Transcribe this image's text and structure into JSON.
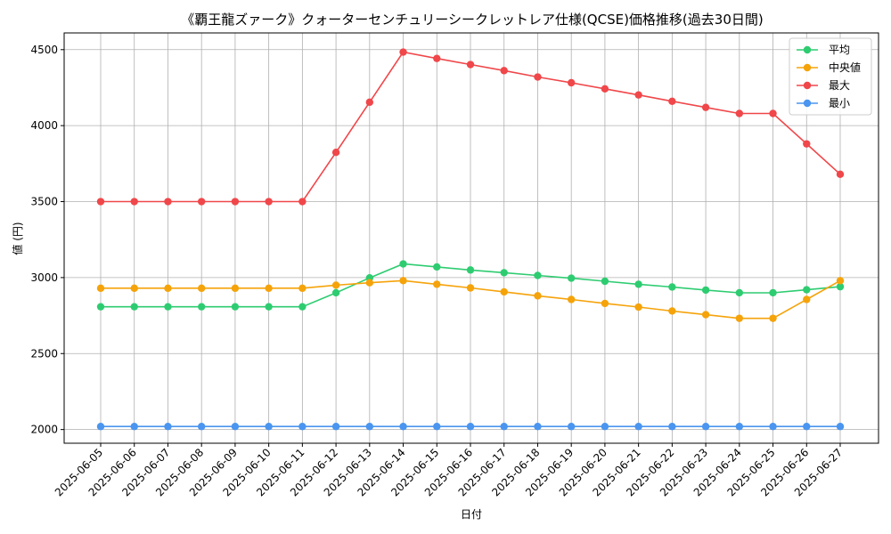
{
  "chart_data": {
    "type": "line",
    "title": "《覇王龍ズァーク》クォーターセンチュリーシークレットレア仕様(QCSE)価格推移(過去30日間)",
    "xlabel": "日付",
    "ylabel": "値 (円)",
    "categories": [
      "2025-06-05",
      "2025-06-06",
      "2025-06-07",
      "2025-06-08",
      "2025-06-09",
      "2025-06-10",
      "2025-06-11",
      "2025-06-12",
      "2025-06-13",
      "2025-06-14",
      "2025-06-15",
      "2025-06-16",
      "2025-06-17",
      "2025-06-18",
      "2025-06-19",
      "2025-06-20",
      "2025-06-21",
      "2025-06-22",
      "2025-06-23",
      "2025-06-24",
      "2025-06-25",
      "2025-06-26",
      "2025-06-27"
    ],
    "ylim": [
      1910,
      4610
    ],
    "yticks": [
      2000,
      2500,
      3000,
      3500,
      4000,
      4500
    ],
    "grid": true,
    "legend_position": "top-right",
    "series": [
      {
        "name": "平均",
        "color": "#2ecc71",
        "values": [
          2808,
          2808,
          2808,
          2808,
          2808,
          2808,
          2808,
          2900,
          2998,
          3090,
          3070,
          3050,
          3032,
          3014,
          2996,
          2976,
          2956,
          2938,
          2918,
          2900,
          2900,
          2920,
          2940
        ]
      },
      {
        "name": "中央値",
        "color": "#f5a30a",
        "values": [
          2930,
          2930,
          2930,
          2930,
          2930,
          2930,
          2930,
          2950,
          2966,
          2980,
          2956,
          2932,
          2906,
          2880,
          2856,
          2830,
          2806,
          2780,
          2756,
          2732,
          2732,
          2856,
          2980
        ]
      },
      {
        "name": "最大",
        "color": "#f0474a",
        "values": [
          3500,
          3500,
          3500,
          3500,
          3500,
          3500,
          3500,
          3824,
          4154,
          4484,
          4442,
          4402,
          4362,
          4320,
          4282,
          4242,
          4202,
          4160,
          4120,
          4080,
          4080,
          3880,
          3680
        ]
      },
      {
        "name": "最小",
        "color": "#4a95ef",
        "values": [
          2020,
          2020,
          2020,
          2020,
          2020,
          2020,
          2020,
          2020,
          2020,
          2020,
          2020,
          2020,
          2020,
          2020,
          2020,
          2020,
          2020,
          2020,
          2020,
          2020,
          2020,
          2020,
          2020
        ]
      }
    ]
  }
}
